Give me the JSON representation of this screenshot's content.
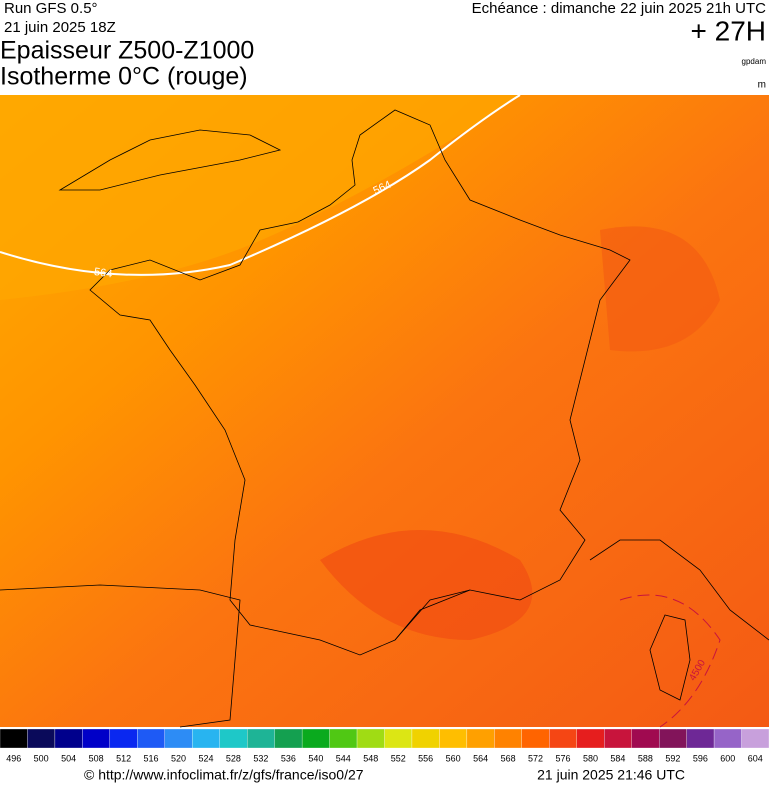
{
  "header": {
    "run": "Run GFS 0.5°",
    "run_date": "21 juin 2025 18Z",
    "valid": "Echéance : dimanche 22 juin 2025 21h UTC",
    "lead": "+ 27H",
    "title_line1": "Epaisseur Z500-Z1000",
    "title_line2": "Isotherme 0°C (rouge)",
    "unit1": "gpdam",
    "unit2": "m"
  },
  "contour_labels": [
    564,
    564,
    4500
  ],
  "scale": {
    "values": [
      496,
      500,
      504,
      508,
      512,
      516,
      520,
      524,
      528,
      532,
      536,
      540,
      544,
      548,
      552,
      556,
      560,
      564,
      568,
      572,
      576,
      580,
      584,
      588,
      592,
      596,
      600,
      604
    ],
    "colors": [
      "#000000",
      "#0a0a5a",
      "#00008c",
      "#0000c8",
      "#0a28f0",
      "#1e5af5",
      "#2d8cf5",
      "#28b4f0",
      "#1ec8c8",
      "#1eb496",
      "#14a050",
      "#0aaa1e",
      "#50c814",
      "#a0dc14",
      "#dce614",
      "#f0d200",
      "#ffbe00",
      "#ffa000",
      "#ff8200",
      "#ff6400",
      "#f54614",
      "#e61e1e",
      "#c8143c",
      "#a00a50",
      "#82145a",
      "#6e2896",
      "#9664c8",
      "#c8a0dc"
    ]
  },
  "footer": {
    "url": "© http://www.infoclimat.fr/z/gfs/france/iso0/27",
    "generated": "21 juin 2025 21:46 UTC"
  }
}
